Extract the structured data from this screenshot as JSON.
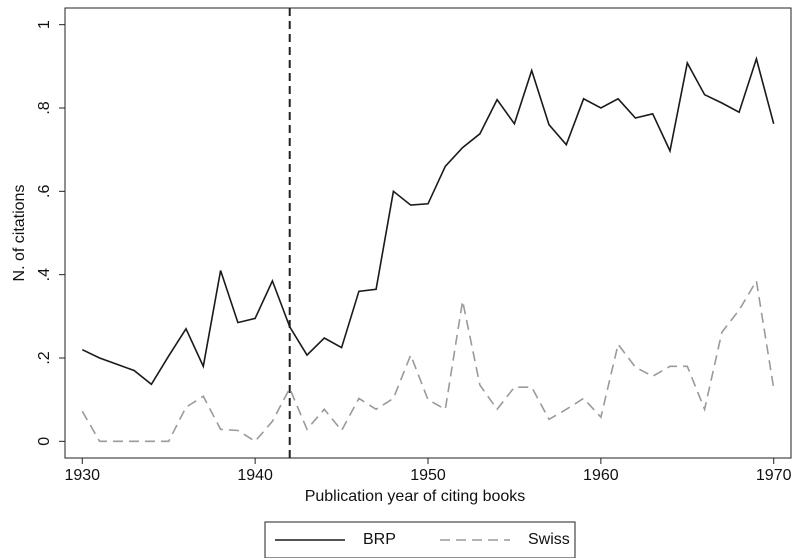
{
  "chart_data": {
    "type": "line",
    "ylabel": "N. of citations",
    "xlabel": "Publication year of citing books",
    "x": [
      1930,
      1931,
      1932,
      1933,
      1934,
      1935,
      1936,
      1937,
      1938,
      1939,
      1940,
      1941,
      1942,
      1943,
      1944,
      1945,
      1946,
      1947,
      1948,
      1949,
      1950,
      1951,
      1952,
      1953,
      1954,
      1955,
      1956,
      1957,
      1958,
      1959,
      1960,
      1961,
      1962,
      1963,
      1964,
      1965,
      1966,
      1967,
      1968,
      1969,
      1970
    ],
    "series": [
      {
        "name": "BRP",
        "color": "#1a1a1a",
        "dash": "solid",
        "values": [
          0.22,
          0.2,
          0.185,
          0.17,
          0.137,
          0.205,
          0.27,
          0.18,
          0.41,
          0.285,
          0.295,
          0.385,
          0.275,
          0.207,
          0.248,
          0.225,
          0.36,
          0.365,
          0.6,
          0.567,
          0.57,
          0.66,
          0.705,
          0.738,
          0.82,
          0.762,
          0.89,
          0.76,
          0.712,
          0.822,
          0.8,
          0.822,
          0.776,
          0.786,
          0.697,
          0.908,
          0.832,
          0.812,
          0.79,
          0.918,
          0.762
        ]
      },
      {
        "name": "Swiss",
        "color": "#9a9a9a",
        "dash": "dashed",
        "values": [
          0.072,
          0,
          0,
          0,
          0,
          0,
          0.082,
          0.108,
          0.029,
          0.026,
          0,
          0.048,
          0.127,
          0.029,
          0.077,
          0.026,
          0.103,
          0.077,
          0.103,
          0.207,
          0.1,
          0.077,
          0.337,
          0.135,
          0.077,
          0.13,
          0.13,
          0.053,
          0.077,
          0.103,
          0.058,
          0.233,
          0.178,
          0.156,
          0.18,
          0.18,
          0.077,
          0.262,
          0.315,
          0.385,
          0.127
        ]
      }
    ],
    "reference_line_x": 1942,
    "xlim": [
      1929,
      1971
    ],
    "ylim": [
      -0.04,
      1.04
    ],
    "xticks": [
      1930,
      1940,
      1950,
      1960,
      1970
    ],
    "yticks": [
      0,
      {
        "value": 0.2,
        "label": ".2"
      },
      {
        "value": 0.4,
        "label": ".4"
      },
      {
        "value": 0.6,
        "label": ".6"
      },
      {
        "value": 0.8,
        "label": ".8"
      },
      1
    ],
    "legend": "bottom"
  }
}
